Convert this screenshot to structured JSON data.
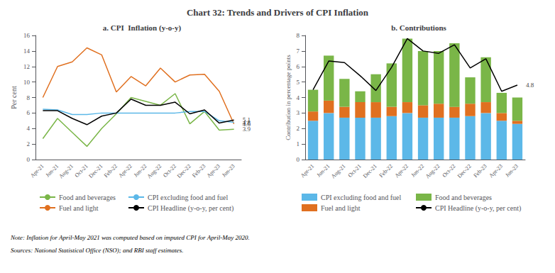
{
  "title": "Chart 32: Trends and Drivers of CPI Inflation",
  "notes": [
    "Note: Inflation for April-May 2021 was computed based on imputed CPI for April-May 2020.",
    "Sources: National Statistical Office (NSO); and RBI staff estimates."
  ],
  "chart_data": [
    {
      "type": "line",
      "title": "a. CPI  Inflation (y-o-y)",
      "categories": [
        "Apr-21",
        "Jun-21",
        "Aug-21",
        "Oct-21",
        "Dec-21",
        "Feb-22",
        "Apr-22",
        "Jun-22",
        "Aug-22",
        "Oct-22",
        "Dec-22",
        "Feb-23",
        "Apr-23",
        "Jun-23"
      ],
      "series": [
        {
          "name": "Food and beverages",
          "color": "#7ab648",
          "values": [
            2.7,
            5.3,
            3.5,
            1.7,
            4.0,
            5.9,
            8.0,
            7.5,
            7.0,
            8.5,
            4.6,
            6.2,
            3.8,
            3.9
          ]
        },
        {
          "name": "Fuel and light",
          "color": "#e07020",
          "values": [
            8.0,
            12.0,
            12.6,
            14.4,
            13.5,
            8.7,
            10.7,
            9.5,
            11.8,
            10.0,
            10.9,
            11.0,
            8.8,
            4.6
          ]
        },
        {
          "name": "CPI excluding food and fuel",
          "color": "#5cb8e8",
          "values": [
            6.5,
            6.4,
            5.8,
            5.8,
            6.0,
            6.0,
            6.0,
            6.0,
            6.0,
            6.0,
            6.2,
            6.2,
            5.0,
            4.8
          ]
        },
        {
          "name": "CPI Headline (y-o-y, per cent)",
          "color": "#000000",
          "values": [
            6.3,
            6.3,
            5.3,
            4.5,
            5.6,
            6.0,
            7.8,
            7.0,
            7.0,
            7.4,
            5.9,
            6.4,
            4.7,
            5.1
          ]
        }
      ],
      "ylabel": "Per cent",
      "ylim": [
        0,
        16
      ],
      "yticks": [
        0,
        2,
        4,
        6,
        8,
        10,
        12,
        14,
        16
      ],
      "annotations": [
        {
          "text": "5.1",
          "x": "Jun-23",
          "y": 5.1
        },
        {
          "text": "4.8",
          "x": "Jun-23",
          "y": 4.8
        },
        {
          "text": "4.6",
          "x": "Jun-23",
          "y": 4.6
        },
        {
          "text": "3.9",
          "x": "Jun-23",
          "y": 3.9
        }
      ],
      "grid": false,
      "legend": "bottom"
    },
    {
      "type": "bar",
      "title": "b. Contributions",
      "stacked": true,
      "categories": [
        "Apr-21",
        "Jun-21",
        "Aug-21",
        "Oct-21",
        "Dec-21",
        "Feb-22",
        "Apr-22",
        "Jun-22",
        "Aug-22",
        "Oct-22",
        "Dec-22",
        "Feb-23",
        "Apr-23",
        "Jun-23"
      ],
      "series": [
        {
          "name": "CPI excluding food and fuel",
          "type": "bar",
          "color": "#5cb8e8",
          "values": [
            2.5,
            3.0,
            2.7,
            2.7,
            2.7,
            2.8,
            3.0,
            2.7,
            2.7,
            2.7,
            2.8,
            3.0,
            2.5,
            2.3
          ]
        },
        {
          "name": "Fuel and light",
          "type": "bar",
          "color": "#e07020",
          "values": [
            0.6,
            0.8,
            0.7,
            1.0,
            1.0,
            0.6,
            0.7,
            0.8,
            0.9,
            0.7,
            0.8,
            0.7,
            0.5,
            0.2
          ]
        },
        {
          "name": "Food and beverages",
          "type": "bar",
          "color": "#7ab648",
          "values": [
            1.4,
            2.9,
            1.8,
            0.7,
            1.8,
            2.8,
            4.1,
            3.5,
            3.4,
            4.1,
            1.7,
            2.9,
            1.3,
            1.5
          ]
        },
        {
          "name": "CPI Headline (y-o-y, per cent)",
          "type": "line",
          "color": "#000000",
          "values": [
            4.5,
            6.35,
            6.25,
            5.4,
            4.45,
            5.95,
            7.8,
            7.0,
            6.85,
            7.4,
            5.9,
            6.5,
            4.4,
            4.8
          ]
        }
      ],
      "ylabel": "Contribution in percentage points",
      "ylim": [
        0,
        8
      ],
      "yticks": [
        0,
        1,
        2,
        3,
        4,
        5,
        6,
        7,
        8
      ],
      "annotations": [
        {
          "text": "4.8",
          "x": "Jun-23",
          "y": 4.8
        }
      ],
      "grid": false,
      "legend": "bottom"
    }
  ]
}
